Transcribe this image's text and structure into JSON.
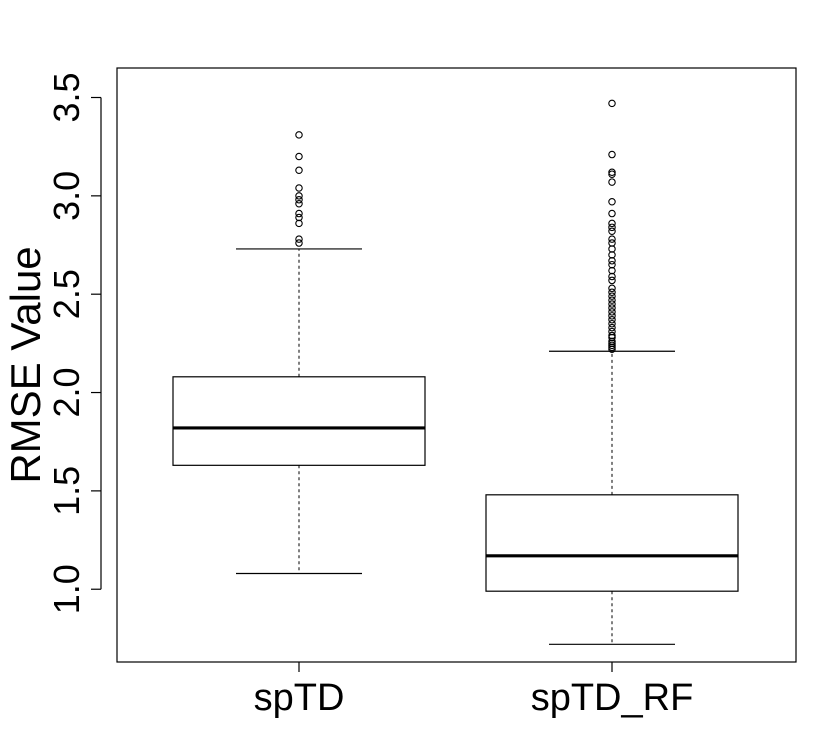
{
  "chart_data": {
    "type": "boxplot",
    "title": "",
    "xlabel": "",
    "ylabel": "RMSE  Value",
    "ylim": [
      0.63,
      3.65
    ],
    "yticks": [
      1.0,
      1.5,
      2.0,
      2.5,
      3.0,
      3.5
    ],
    "ytick_labels": [
      "1.0",
      "1.5",
      "2.0",
      "2.5",
      "3.0",
      "3.5"
    ],
    "grid": false,
    "categories": [
      "spTD",
      "spTD_RF"
    ],
    "series": [
      {
        "category": "spTD",
        "whisker_low": 1.08,
        "q1": 1.63,
        "median": 1.82,
        "q3": 2.08,
        "whisker_high": 2.73,
        "outliers": [
          2.76,
          2.78,
          2.86,
          2.89,
          2.91,
          2.96,
          2.98,
          3.0,
          3.04,
          3.13,
          3.2,
          3.31
        ]
      },
      {
        "category": "spTD_RF",
        "whisker_low": 0.72,
        "q1": 0.99,
        "median": 1.17,
        "q3": 1.48,
        "whisker_high": 2.21,
        "outliers": [
          2.22,
          2.23,
          2.24,
          2.25,
          2.26,
          2.28,
          2.29,
          2.31,
          2.33,
          2.35,
          2.37,
          2.39,
          2.41,
          2.43,
          2.45,
          2.47,
          2.49,
          2.51,
          2.53,
          2.57,
          2.59,
          2.62,
          2.65,
          2.67,
          2.7,
          2.73,
          2.76,
          2.78,
          2.82,
          2.84,
          2.86,
          2.91,
          2.97,
          3.07,
          3.11,
          3.12,
          3.21,
          3.47
        ]
      }
    ]
  }
}
